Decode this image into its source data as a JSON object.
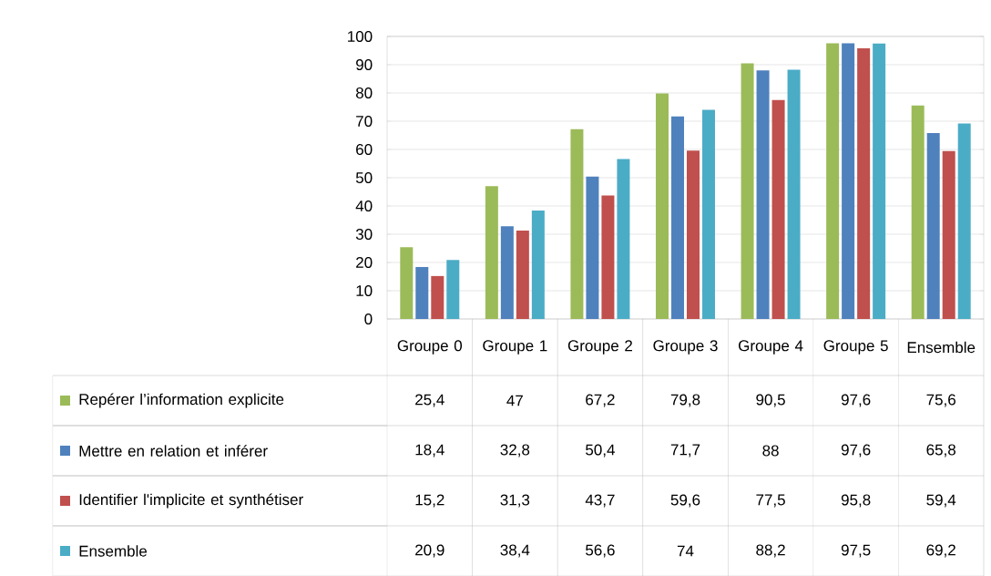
{
  "chart_data": {
    "type": "bar",
    "categories": [
      "Groupe 0",
      "Groupe 1",
      "Groupe 2",
      "Groupe 3",
      "Groupe 4",
      "Groupe 5",
      "Ensemble"
    ],
    "ylim": [
      0,
      100
    ],
    "yticks": [
      0,
      10,
      20,
      30,
      40,
      50,
      60,
      70,
      80,
      90,
      100
    ],
    "grid": "y",
    "legend": "bottom",
    "series": [
      {
        "name": "Repérer l’information explicite",
        "color": "#9bbb59",
        "values": [
          25.4,
          47,
          67.2,
          79.8,
          90.5,
          97.6,
          75.6
        ],
        "value_labels": [
          "25,4",
          "47",
          "67,2",
          "79,8",
          "90,5",
          "97,6",
          "75,6"
        ]
      },
      {
        "name": "Mettre en relation et inférer",
        "color": "#4f81bd",
        "values": [
          18.4,
          32.8,
          50.4,
          71.7,
          88,
          97.6,
          65.8
        ],
        "value_labels": [
          "18,4",
          "32,8",
          "50,4",
          "71,7",
          "88",
          "97,6",
          "65,8"
        ]
      },
      {
        "name": "Identifier l'implicite et synthétiser",
        "color": "#c0504d",
        "values": [
          15.2,
          31.3,
          43.7,
          59.6,
          77.5,
          95.8,
          59.4
        ],
        "value_labels": [
          "15,2",
          "31,3",
          "43,7",
          "59,6",
          "77,5",
          "95,8",
          "59,4"
        ]
      },
      {
        "name": "Ensemble",
        "color": "#4bacc6",
        "values": [
          20.9,
          38.4,
          56.6,
          74,
          88.2,
          97.5,
          69.2
        ],
        "value_labels": [
          "20,9",
          "38,4",
          "56,6",
          "74",
          "88,2",
          "97,5",
          "69,2"
        ]
      }
    ]
  }
}
